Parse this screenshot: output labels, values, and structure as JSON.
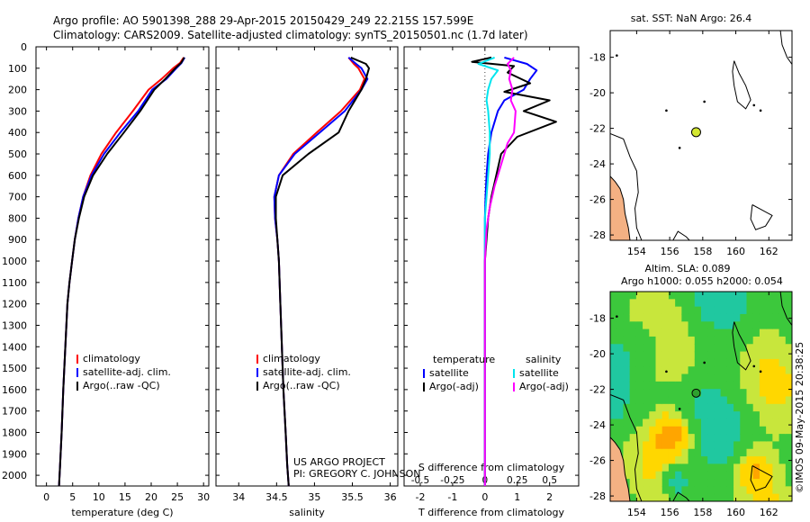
{
  "title_line1": "Argo profile: AO 5901398_288 29-Apr-2015 20150429_249 22.215S 157.599E",
  "title_line2": "Climatology: CARS2009. Satellite-adjusted climatology: synTS_20150501.nc (1.7d later)",
  "credits": {
    "project": "US ARGO PROJECT",
    "pi": "PI: GREGORY C. JOHNSON",
    "imos": "©IMOS 09-May-2015 20:38:25"
  },
  "colors": {
    "climatology": "#ff0000",
    "satellite": "#0000ff",
    "argo": "#000000",
    "sat_salinity": "#00e5ee",
    "argo_salinity": "#ff00ff",
    "land": "#f4b183",
    "sea_grid": "#1e7cff"
  },
  "depth_axis": {
    "ylim": [
      0,
      2050
    ],
    "ticks": [
      0,
      100,
      200,
      300,
      400,
      500,
      600,
      700,
      800,
      900,
      1000,
      1100,
      1200,
      1300,
      1400,
      1500,
      1600,
      1700,
      1800,
      1900,
      2000
    ]
  },
  "chart_data": [
    {
      "type": "line",
      "xlabel": "temperature (deg C)",
      "xlim": [
        -2,
        31
      ],
      "xticks": [
        0,
        5,
        10,
        15,
        20,
        25,
        30
      ],
      "legend": [
        "climatology",
        "satellite-adj. clim.",
        "Argo(..raw -QC)"
      ],
      "series": [
        {
          "name": "climatology",
          "color": "#ff0000",
          "x": [
            26.2,
            25.5,
            24.2,
            22.0,
            19.5,
            16.5,
            13.3,
            10.5,
            8.4,
            7.0,
            6.1,
            5.4,
            4.9,
            4.4,
            4.0,
            3.6,
            3.2,
            2.9,
            2.6,
            2.4
          ],
          "y": [
            50,
            75,
            100,
            150,
            200,
            300,
            400,
            500,
            600,
            700,
            800,
            900,
            1000,
            1100,
            1200,
            1400,
            1600,
            1800,
            1950,
            2050
          ]
        },
        {
          "name": "satellite-adj. clim.",
          "color": "#0000ff",
          "x": [
            26.4,
            25.8,
            24.8,
            22.9,
            20.2,
            17.5,
            14.1,
            11.0,
            8.6,
            7.0,
            6.1,
            5.4,
            4.9,
            4.4,
            4.0,
            3.6,
            3.2,
            2.9,
            2.6,
            2.4
          ],
          "y": [
            50,
            75,
            100,
            150,
            200,
            300,
            400,
            500,
            600,
            700,
            800,
            900,
            1000,
            1100,
            1200,
            1400,
            1600,
            1800,
            1950,
            2050
          ]
        },
        {
          "name": "Argo(..raw -QC)",
          "color": "#000000",
          "x": [
            26.3,
            25.7,
            24.6,
            22.7,
            20.6,
            17.9,
            14.8,
            11.6,
            8.9,
            7.2,
            6.2,
            5.4,
            4.9,
            4.4,
            4.0,
            3.6,
            3.2,
            2.9,
            2.6,
            2.4
          ],
          "y": [
            50,
            75,
            100,
            150,
            200,
            300,
            400,
            500,
            600,
            700,
            800,
            900,
            1000,
            1100,
            1200,
            1400,
            1600,
            1800,
            1950,
            2050
          ]
        }
      ]
    },
    {
      "type": "line",
      "xlabel": "salinity",
      "xlim": [
        33.7,
        36.1
      ],
      "xticks": [
        34,
        34.5,
        35,
        35.5,
        36
      ],
      "legend": [
        "climatology",
        "satellite-adj. clim.",
        "Argo(..raw -QC)"
      ],
      "series": [
        {
          "name": "climatology",
          "color": "#ff0000",
          "x": [
            35.45,
            35.52,
            35.58,
            35.66,
            35.6,
            35.35,
            35.03,
            34.72,
            34.53,
            34.47,
            34.48,
            34.51,
            34.53,
            34.55,
            34.57,
            34.59,
            34.62,
            34.64,
            34.66
          ],
          "y": [
            50,
            80,
            100,
            150,
            200,
            300,
            400,
            500,
            600,
            700,
            800,
            900,
            1000,
            1200,
            1400,
            1600,
            1800,
            1950,
            2050
          ]
        },
        {
          "name": "satellite-adj. clim.",
          "color": "#0000ff",
          "x": [
            35.45,
            35.55,
            35.62,
            35.7,
            35.62,
            35.4,
            35.07,
            34.74,
            34.53,
            34.47,
            34.48,
            34.51,
            34.53,
            34.55,
            34.57,
            34.59,
            34.62,
            34.64,
            34.66
          ],
          "y": [
            50,
            80,
            100,
            150,
            200,
            300,
            400,
            500,
            600,
            700,
            800,
            900,
            1000,
            1200,
            1400,
            1600,
            1800,
            1950,
            2050
          ]
        },
        {
          "name": "Argo(..raw -QC)",
          "color": "#000000",
          "x": [
            35.48,
            35.68,
            35.72,
            35.68,
            35.62,
            35.45,
            35.32,
            34.92,
            34.58,
            34.49,
            34.49,
            34.51,
            34.53,
            34.55,
            34.57,
            34.59,
            34.62,
            34.64,
            34.66
          ],
          "y": [
            50,
            80,
            100,
            150,
            200,
            300,
            400,
            500,
            600,
            700,
            800,
            900,
            1000,
            1200,
            1400,
            1600,
            1800,
            1950,
            2050
          ]
        }
      ]
    },
    {
      "type": "line",
      "xlabel": "T difference from climatology",
      "xlabel_top": "S difference from climatology",
      "xlim": [
        -2.5,
        2.9
      ],
      "xticks": [
        -2,
        -1,
        0,
        1,
        2
      ],
      "xticks_top": [
        "-0.5",
        "-0.25",
        "0",
        "0.25",
        "0.5"
      ],
      "legend_titles": [
        "temperature",
        "salinity"
      ],
      "legend": [
        "satellite",
        "Argo(-adj)",
        "satellite",
        "Argo(-adj)"
      ],
      "series": [
        {
          "name": "satellite",
          "group": "temperature",
          "color": "#0000ff",
          "x": [
            0.6,
            1.3,
            1.6,
            1.4,
            1.2,
            0.6,
            0.4,
            0.2,
            0.1,
            0.05,
            0.02,
            0,
            0,
            0
          ],
          "y": [
            50,
            80,
            110,
            150,
            200,
            250,
            300,
            400,
            500,
            600,
            700,
            800,
            1200,
            2050
          ]
        },
        {
          "name": "Argo(-adj)",
          "group": "temperature",
          "color": "#000000",
          "x": [
            0.2,
            -0.4,
            0.9,
            0.7,
            1.4,
            0.6,
            2.0,
            1.2,
            2.2,
            1.0,
            0.5,
            0.35,
            0.2,
            0.1,
            0.05,
            0,
            0,
            0
          ],
          "y": [
            50,
            70,
            90,
            120,
            170,
            210,
            250,
            300,
            350,
            420,
            500,
            600,
            700,
            800,
            900,
            1000,
            1400,
            2050
          ]
        },
        {
          "name": "satellite",
          "group": "salinity",
          "color": "#00e5ee",
          "x": [
            0.3,
            -0.2,
            0.4,
            0.2,
            0.1,
            0.05,
            0.1,
            0.15,
            0.15,
            0.1,
            0.05,
            0,
            0,
            0
          ],
          "y": [
            50,
            80,
            110,
            150,
            200,
            250,
            300,
            400,
            500,
            600,
            700,
            800,
            1200,
            2050
          ]
        },
        {
          "name": "Argo(-adj)",
          "group": "salinity",
          "color": "#ff00ff",
          "x": [
            0.9,
            0.7,
            0.8,
            0.75,
            0.85,
            0.8,
            0.95,
            0.9,
            0.7,
            0.5,
            0.3,
            0.15,
            0.05,
            0,
            0,
            0
          ],
          "y": [
            50,
            80,
            110,
            150,
            200,
            250,
            300,
            400,
            450,
            550,
            650,
            750,
            850,
            1000,
            1400,
            2050
          ]
        }
      ]
    },
    {
      "type": "scatter",
      "title": "sat. SST: NaN Argo: 26.4",
      "xlim": [
        152.4,
        163.4
      ],
      "ylim": [
        -28.3,
        -16.5
      ],
      "xticks": [
        154,
        156,
        158,
        160,
        162
      ],
      "yticks": [
        -18,
        -20,
        -22,
        -24,
        -26,
        -28
      ],
      "points": [
        {
          "x": 157.599,
          "y": -22.215,
          "color": "#d4e832"
        }
      ]
    },
    {
      "type": "heatmap",
      "title_line1": "Altim. SLA: 0.089",
      "title_line2": "Argo h1000: 0.055 h2000: 0.054",
      "xlim": [
        152.4,
        163.4
      ],
      "ylim": [
        -28.3,
        -16.5
      ],
      "xticks": [
        154,
        156,
        158,
        160,
        162
      ],
      "yticks": [
        -18,
        -20,
        -22,
        -24,
        -26,
        -28
      ],
      "points": [
        {
          "x": 157.599,
          "y": -22.215,
          "color": "#2ea02e"
        }
      ]
    }
  ]
}
